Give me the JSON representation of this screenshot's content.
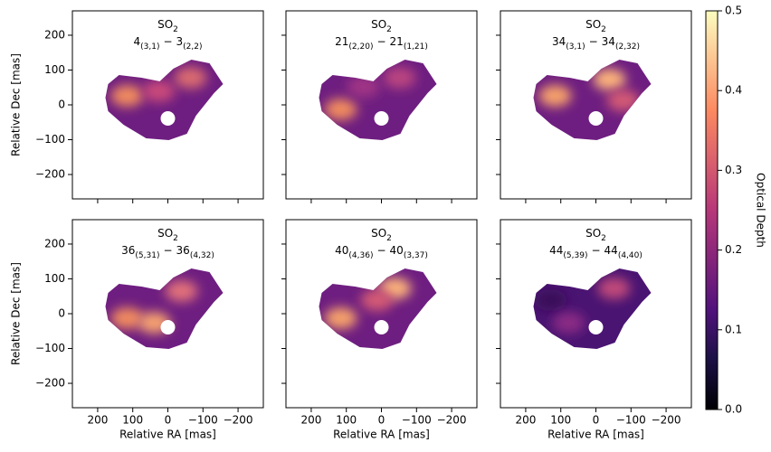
{
  "chart_data": {
    "type": "image-grid",
    "molecule": "SO",
    "molecule_sub": "2",
    "separator": "−",
    "panels": [
      {
        "upper": "4",
        "upper_sub": "(3,1)",
        "lower": "3",
        "lower_sub": "(2,2)"
      },
      {
        "upper": "21",
        "upper_sub": "(2,20)",
        "lower": "21",
        "lower_sub": "(1,21)"
      },
      {
        "upper": "34",
        "upper_sub": "(3,1)",
        "lower": "34",
        "lower_sub": "(2,32)"
      },
      {
        "upper": "36",
        "upper_sub": "(5,31)",
        "lower": "36",
        "lower_sub": "(4,32)"
      },
      {
        "upper": "40",
        "upper_sub": "(4,36)",
        "lower": "40",
        "lower_sub": "(3,37)"
      },
      {
        "upper": "44",
        "upper_sub": "(5,39)",
        "lower": "44",
        "lower_sub": "(4,40)"
      }
    ],
    "xlabel": "Relative RA [mas]",
    "ylabel": "Relative Dec [mas]",
    "xlim": [
      272,
      -272
    ],
    "ylim": [
      -270,
      270
    ],
    "xticks": [
      200,
      100,
      0,
      {
        "value": -100,
        "label": "−100"
      },
      {
        "value": -200,
        "label": "−200"
      }
    ],
    "yticks": [
      {
        "value": -200,
        "label": "−200"
      },
      {
        "value": -100,
        "label": "−100"
      },
      0,
      100,
      200
    ],
    "colorbar": {
      "label": "Optical Depth",
      "lim": [
        0,
        0.5
      ],
      "colormap": "magma",
      "ticks": [
        {
          "value": 0,
          "label": "0.0"
        },
        0.1,
        0.2,
        0.3,
        0.4,
        0.5
      ]
    }
  }
}
